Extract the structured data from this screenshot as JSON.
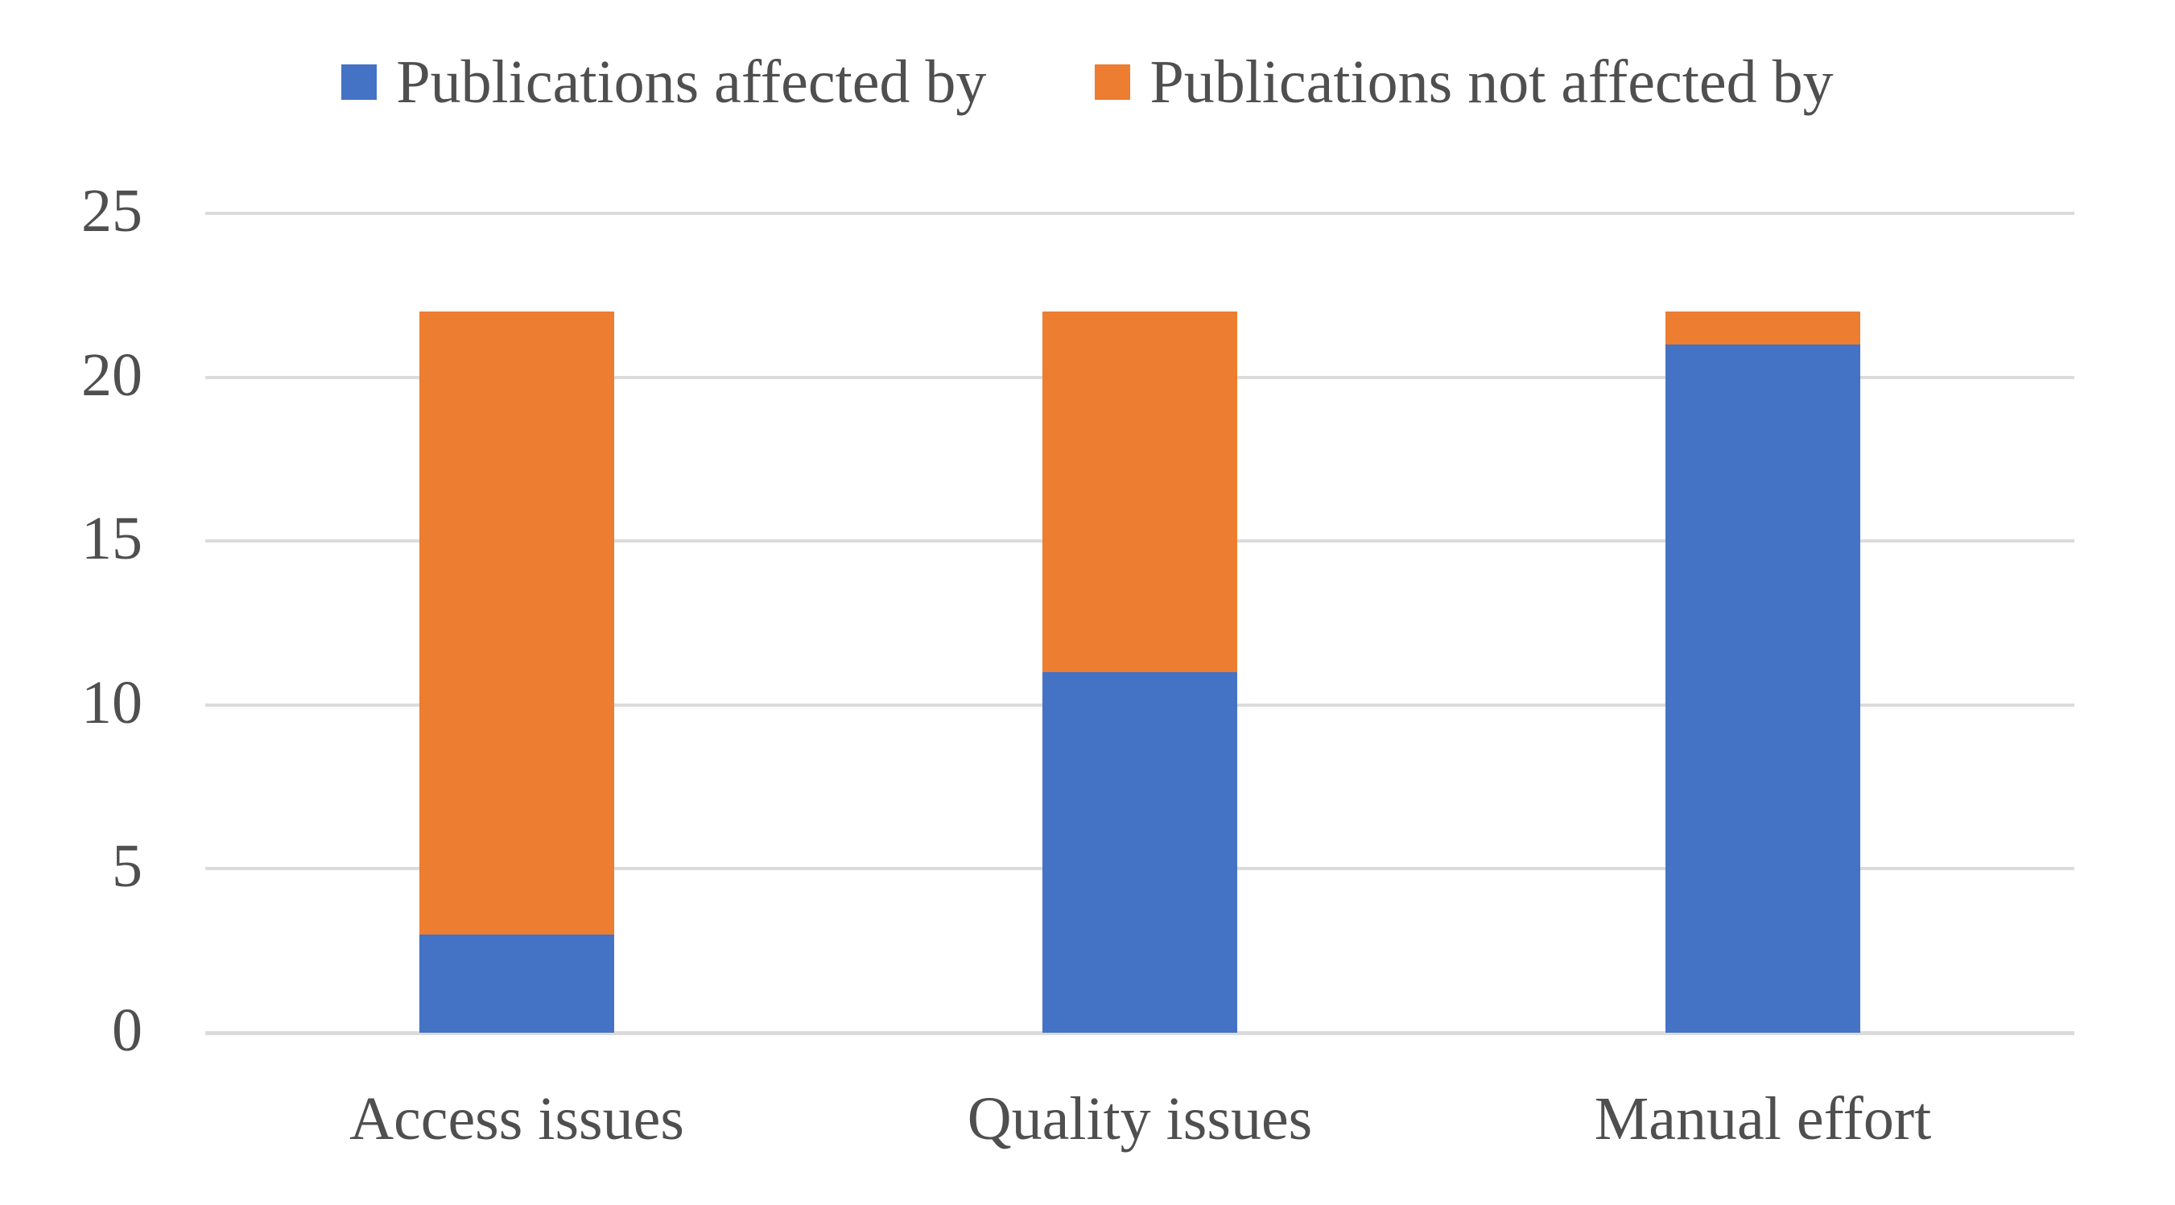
{
  "chart_data": {
    "type": "bar",
    "stacked": true,
    "title": "",
    "xlabel": "",
    "ylabel": "",
    "categories": [
      "Access issues",
      "Quality issues",
      "Manual effort"
    ],
    "series": [
      {
        "name": "Publications affected by",
        "color": "#4472C4",
        "values": [
          3,
          11,
          21
        ]
      },
      {
        "name": "Publications not affected by",
        "color": "#ED7D31",
        "values": [
          19,
          11,
          1
        ]
      }
    ],
    "totals": [
      22,
      22,
      22
    ],
    "ylim": [
      0,
      25
    ],
    "y_ticks": [
      0,
      5,
      10,
      15,
      20,
      25
    ],
    "grid": true,
    "legend_position": "top",
    "grid_color": "#DBDBDB",
    "label_color": "#4f4f4f",
    "background": "#FFFFFF"
  }
}
